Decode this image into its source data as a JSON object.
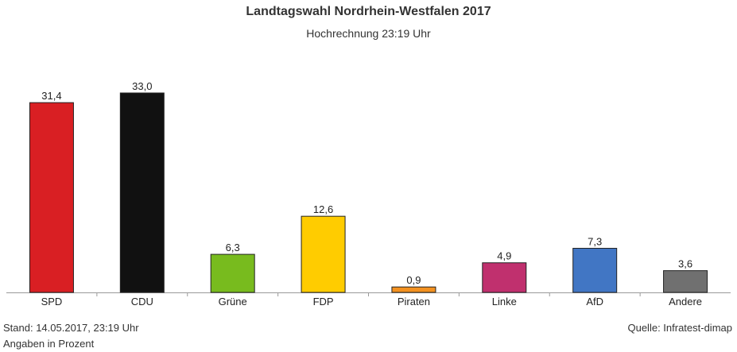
{
  "chart_data": {
    "type": "bar",
    "title": "Landtagswahl Nordrhein-Westfalen 2017",
    "subtitle": "Hochrechnung 23:19 Uhr",
    "categories": [
      "SPD",
      "CDU",
      "Grüne",
      "FDP",
      "Piraten",
      "Linke",
      "AfD",
      "Andere"
    ],
    "values": [
      31.4,
      33.0,
      6.3,
      12.6,
      0.9,
      4.9,
      7.3,
      3.6
    ],
    "value_labels": [
      "31,4",
      "33,0",
      "6,3",
      "12,6",
      "0,9",
      "4,9",
      "7,3",
      "3,6"
    ],
    "colors": [
      "#d91f23",
      "#111111",
      "#78bb1e",
      "#ffcc00",
      "#f39120",
      "#c0306e",
      "#4176c4",
      "#707070"
    ],
    "ylim": [
      0,
      33.0
    ],
    "xlabel": "",
    "ylabel": "",
    "grid": false
  },
  "footer": {
    "stand": "Stand: 14.05.2017, 23:19 Uhr",
    "unit_note": "Angaben in Prozent",
    "source": "Quelle: Infratest-dimap"
  }
}
